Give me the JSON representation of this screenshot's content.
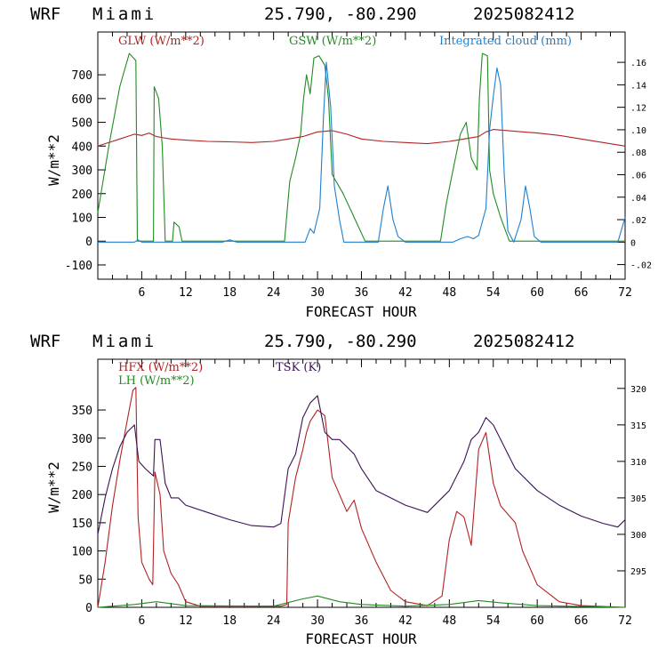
{
  "charts": [
    {
      "header": {
        "model": "WRF",
        "location": "Miami",
        "coords": "25.790, -80.290",
        "run": "2025082412"
      }
    },
    {
      "header": {
        "model": "WRF",
        "location": "Miami",
        "coords": "25.790, -80.290",
        "run": "2025082412"
      }
    }
  ],
  "chart_data": [
    {
      "type": "line",
      "xlabel": "FORECAST HOUR",
      "ylabel": "W/m**2",
      "xlim": [
        0,
        72
      ],
      "ylim": [
        -160,
        880
      ],
      "y2lim": [
        -0.033,
        0.187
      ],
      "x_ticks": [
        6,
        12,
        18,
        24,
        30,
        36,
        42,
        48,
        54,
        60,
        66,
        72
      ],
      "y_ticks": [
        -100,
        0,
        100,
        200,
        300,
        400,
        500,
        600,
        700
      ],
      "y2_ticks": [
        -0.02,
        0,
        0.02,
        0.04,
        0.06,
        0.08,
        0.1,
        0.12,
        0.14,
        0.16
      ],
      "y2_tick_labels": [
        "-.02",
        "0",
        ".02",
        ".04",
        ".06",
        ".08",
        ".10",
        ".12",
        ".14",
        ".16"
      ],
      "series": [
        {
          "name": "GLW (W/m**2)",
          "color": "#b22222",
          "axis": "left",
          "points": [
            [
              0,
              400
            ],
            [
              1,
              410
            ],
            [
              2,
              420
            ],
            [
              3,
              430
            ],
            [
              4,
              440
            ],
            [
              5,
              450
            ],
            [
              6,
              445
            ],
            [
              7,
              455
            ],
            [
              8,
              440
            ],
            [
              9,
              435
            ],
            [
              10,
              430
            ],
            [
              12,
              425
            ],
            [
              15,
              420
            ],
            [
              18,
              418
            ],
            [
              21,
              415
            ],
            [
              24,
              420
            ],
            [
              26,
              430
            ],
            [
              28,
              440
            ],
            [
              30,
              460
            ],
            [
              32,
              465
            ],
            [
              34,
              450
            ],
            [
              36,
              430
            ],
            [
              39,
              420
            ],
            [
              42,
              415
            ],
            [
              45,
              410
            ],
            [
              48,
              420
            ],
            [
              50,
              430
            ],
            [
              52,
              440
            ],
            [
              53,
              460
            ],
            [
              54,
              470
            ],
            [
              56,
              465
            ],
            [
              58,
              460
            ],
            [
              60,
              455
            ],
            [
              63,
              445
            ],
            [
              66,
              430
            ],
            [
              69,
              415
            ],
            [
              72,
              400
            ]
          ]
        },
        {
          "name": "GSW (W/m**2)",
          "color": "#228b22",
          "axis": "left",
          "points": [
            [
              0,
              120
            ],
            [
              1.5,
              400
            ],
            [
              3,
              650
            ],
            [
              4.3,
              790
            ],
            [
              5.2,
              760
            ],
            [
              5.4,
              0
            ],
            [
              7.6,
              0
            ],
            [
              7.7,
              650
            ],
            [
              8.3,
              600
            ],
            [
              8.8,
              400
            ],
            [
              9.2,
              0
            ],
            [
              10.2,
              0
            ],
            [
              10.4,
              80
            ],
            [
              11.1,
              60
            ],
            [
              11.5,
              0
            ],
            [
              25.5,
              0
            ],
            [
              26.2,
              250
            ],
            [
              27,
              350
            ],
            [
              27.7,
              450
            ],
            [
              28.1,
              600
            ],
            [
              28.5,
              700
            ],
            [
              29,
              620
            ],
            [
              29.5,
              770
            ],
            [
              30.2,
              780
            ],
            [
              31,
              740
            ],
            [
              31.5,
              600
            ],
            [
              32,
              280
            ],
            [
              33.5,
              200
            ],
            [
              35,
              100
            ],
            [
              36.5,
              0
            ],
            [
              46.8,
              0
            ],
            [
              47.6,
              160
            ],
            [
              48.5,
              300
            ],
            [
              49.5,
              450
            ],
            [
              50.3,
              500
            ],
            [
              51,
              350
            ],
            [
              51.8,
              300
            ],
            [
              52.1,
              600
            ],
            [
              52.5,
              790
            ],
            [
              53.2,
              780
            ],
            [
              53.5,
              300
            ],
            [
              54,
              200
            ],
            [
              55,
              100
            ],
            [
              56.2,
              0
            ],
            [
              72,
              0
            ]
          ]
        },
        {
          "name": "Integrated cloud (mm)",
          "color": "#1e7fd0",
          "axis": "right",
          "points": [
            [
              0,
              0
            ],
            [
              5,
              0
            ],
            [
              5.5,
              0.002
            ],
            [
              6,
              0
            ],
            [
              17,
              0
            ],
            [
              18,
              0.002
            ],
            [
              19,
              0
            ],
            [
              28.3,
              0
            ],
            [
              29,
              0.012
            ],
            [
              29.5,
              0.008
            ],
            [
              30.3,
              0.03
            ],
            [
              30.8,
              0.11
            ],
            [
              31.2,
              0.16
            ],
            [
              31.8,
              0.12
            ],
            [
              32.3,
              0.05
            ],
            [
              33,
              0.02
            ],
            [
              33.6,
              0
            ],
            [
              38.3,
              0
            ],
            [
              39,
              0.03
            ],
            [
              39.6,
              0.05
            ],
            [
              40.3,
              0.02
            ],
            [
              41,
              0.005
            ],
            [
              42,
              0
            ],
            [
              48.5,
              0
            ],
            [
              49.5,
              0.003
            ],
            [
              50.5,
              0.005
            ],
            [
              51.3,
              0.003
            ],
            [
              52,
              0.006
            ],
            [
              53,
              0.03
            ],
            [
              53.5,
              0.1
            ],
            [
              54,
              0.13
            ],
            [
              54.5,
              0.155
            ],
            [
              55,
              0.14
            ],
            [
              55.5,
              0.06
            ],
            [
              56,
              0.01
            ],
            [
              56.8,
              0
            ],
            [
              57.8,
              0.02
            ],
            [
              58.4,
              0.05
            ],
            [
              59,
              0.03
            ],
            [
              59.6,
              0.005
            ],
            [
              60.5,
              0
            ],
            [
              71,
              0
            ],
            [
              72,
              0.022
            ]
          ]
        }
      ]
    },
    {
      "type": "line",
      "xlabel": "FORECAST HOUR",
      "ylabel": "W/m**2",
      "xlim": [
        0,
        72
      ],
      "ylim": [
        0,
        440
      ],
      "y2lim": [
        290,
        324
      ],
      "x_ticks": [
        6,
        12,
        18,
        24,
        30,
        36,
        42,
        48,
        54,
        60,
        66,
        72
      ],
      "y_ticks": [
        0,
        50,
        100,
        150,
        200,
        250,
        300,
        350
      ],
      "y2_ticks": [
        295,
        300,
        305,
        310,
        315,
        320
      ],
      "y2_tick_labels": [
        "295",
        "300",
        "305",
        "310",
        "315",
        "320"
      ],
      "series": [
        {
          "name": "HFX (W/m**2)",
          "color": "#b22222",
          "axis": "left",
          "points": [
            [
              0,
              0
            ],
            [
              1,
              80
            ],
            [
              2,
              180
            ],
            [
              3,
              260
            ],
            [
              4,
              330
            ],
            [
              4.8,
              385
            ],
            [
              5.2,
              390
            ],
            [
              5.5,
              160
            ],
            [
              6,
              80
            ],
            [
              7,
              50
            ],
            [
              7.5,
              40
            ],
            [
              7.8,
              240
            ],
            [
              8.5,
              200
            ],
            [
              9,
              100
            ],
            [
              10,
              60
            ],
            [
              11,
              40
            ],
            [
              12,
              10
            ],
            [
              14,
              2
            ],
            [
              25,
              2
            ],
            [
              25.8,
              5
            ],
            [
              26,
              150
            ],
            [
              27,
              230
            ],
            [
              28,
              280
            ],
            [
              28.5,
              310
            ],
            [
              29,
              330
            ],
            [
              30,
              350
            ],
            [
              31,
              340
            ],
            [
              32,
              230
            ],
            [
              34,
              170
            ],
            [
              35,
              190
            ],
            [
              36,
              140
            ],
            [
              38,
              80
            ],
            [
              40,
              30
            ],
            [
              42,
              10
            ],
            [
              45,
              3
            ],
            [
              47,
              20
            ],
            [
              48,
              120
            ],
            [
              49,
              170
            ],
            [
              50,
              160
            ],
            [
              51,
              110
            ],
            [
              52,
              280
            ],
            [
              53,
              310
            ],
            [
              54,
              220
            ],
            [
              55,
              180
            ],
            [
              57,
              150
            ],
            [
              58,
              100
            ],
            [
              60,
              40
            ],
            [
              63,
              10
            ],
            [
              66,
              3
            ],
            [
              72,
              0
            ]
          ]
        },
        {
          "name": "LH (W/m**2)",
          "color": "#228b22",
          "axis": "left",
          "points": [
            [
              0,
              0
            ],
            [
              5,
              5
            ],
            [
              8,
              10
            ],
            [
              12,
              3
            ],
            [
              24,
              2
            ],
            [
              28,
              15
            ],
            [
              30,
              20
            ],
            [
              33,
              10
            ],
            [
              36,
              5
            ],
            [
              42,
              2
            ],
            [
              48,
              5
            ],
            [
              52,
              12
            ],
            [
              55,
              8
            ],
            [
              60,
              3
            ],
            [
              72,
              0
            ]
          ]
        },
        {
          "name": "TSK (K)",
          "color": "#3b1255",
          "axis": "right",
          "points": [
            [
              0,
              300
            ],
            [
              1,
              305
            ],
            [
              2,
              309
            ],
            [
              3,
              312
            ],
            [
              4,
              314
            ],
            [
              5,
              315
            ],
            [
              5.6,
              310
            ],
            [
              6.5,
              309
            ],
            [
              7.6,
              308
            ],
            [
              7.8,
              313
            ],
            [
              8.5,
              313
            ],
            [
              9.2,
              307
            ],
            [
              10,
              305
            ],
            [
              11,
              305
            ],
            [
              12,
              304
            ],
            [
              15,
              303
            ],
            [
              18,
              302
            ],
            [
              21,
              301.2
            ],
            [
              24,
              301
            ],
            [
              25,
              301.5
            ],
            [
              26,
              309
            ],
            [
              27,
              311
            ],
            [
              28,
              316
            ],
            [
              29,
              318
            ],
            [
              30,
              319
            ],
            [
              31,
              314
            ],
            [
              32,
              313
            ],
            [
              33,
              313
            ],
            [
              35,
              311
            ],
            [
              36,
              309
            ],
            [
              38,
              306
            ],
            [
              40,
              305
            ],
            [
              42,
              304
            ],
            [
              45,
              303
            ],
            [
              48,
              306
            ],
            [
              50,
              310
            ],
            [
              51,
              313
            ],
            [
              52,
              314
            ],
            [
              53,
              316
            ],
            [
              54,
              315
            ],
            [
              55,
              313
            ],
            [
              57,
              309
            ],
            [
              60,
              306
            ],
            [
              63,
              304
            ],
            [
              66,
              302.5
            ],
            [
              69,
              301.5
            ],
            [
              71,
              301
            ],
            [
              72,
              302
            ]
          ]
        }
      ]
    }
  ]
}
